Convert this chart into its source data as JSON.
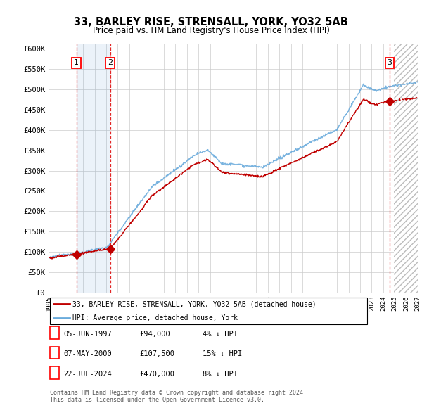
{
  "title": "33, BARLEY RISE, STRENSALL, YORK, YO32 5AB",
  "subtitle": "Price paid vs. HM Land Registry's House Price Index (HPI)",
  "ylim": [
    0,
    612500
  ],
  "yticks": [
    0,
    50000,
    100000,
    150000,
    200000,
    250000,
    300000,
    350000,
    400000,
    450000,
    500000,
    550000,
    600000
  ],
  "ytick_labels": [
    "£0",
    "£50K",
    "£100K",
    "£150K",
    "£200K",
    "£250K",
    "£300K",
    "£350K",
    "£400K",
    "£450K",
    "£500K",
    "£550K",
    "£600K"
  ],
  "hpi_color": "#6aabdc",
  "price_color": "#c00000",
  "background_color": "#ffffff",
  "plot_bg_color": "#ffffff",
  "grid_color": "#cccccc",
  "sale1_date": 1997.42,
  "sale2_date": 2000.35,
  "sale3_date": 2024.55,
  "sale1_price": 94000,
  "sale2_price": 107500,
  "sale3_price": 470000,
  "future_start": 2024.92,
  "legend_label_price": "33, BARLEY RISE, STRENSALL, YORK, YO32 5AB (detached house)",
  "legend_label_hpi": "HPI: Average price, detached house, York",
  "table_rows": [
    {
      "num": "1",
      "date": "05-JUN-1997",
      "price": "£94,000",
      "hpi": "4% ↓ HPI"
    },
    {
      "num": "2",
      "date": "07-MAY-2000",
      "price": "£107,500",
      "hpi": "15% ↓ HPI"
    },
    {
      "num": "3",
      "date": "22-JUL-2024",
      "price": "£470,000",
      "hpi": "8% ↓ HPI"
    }
  ],
  "footnote": "Contains HM Land Registry data © Crown copyright and database right 2024.\nThis data is licensed under the Open Government Licence v3.0.",
  "xmin": 1995.0,
  "xmax": 2027.0
}
